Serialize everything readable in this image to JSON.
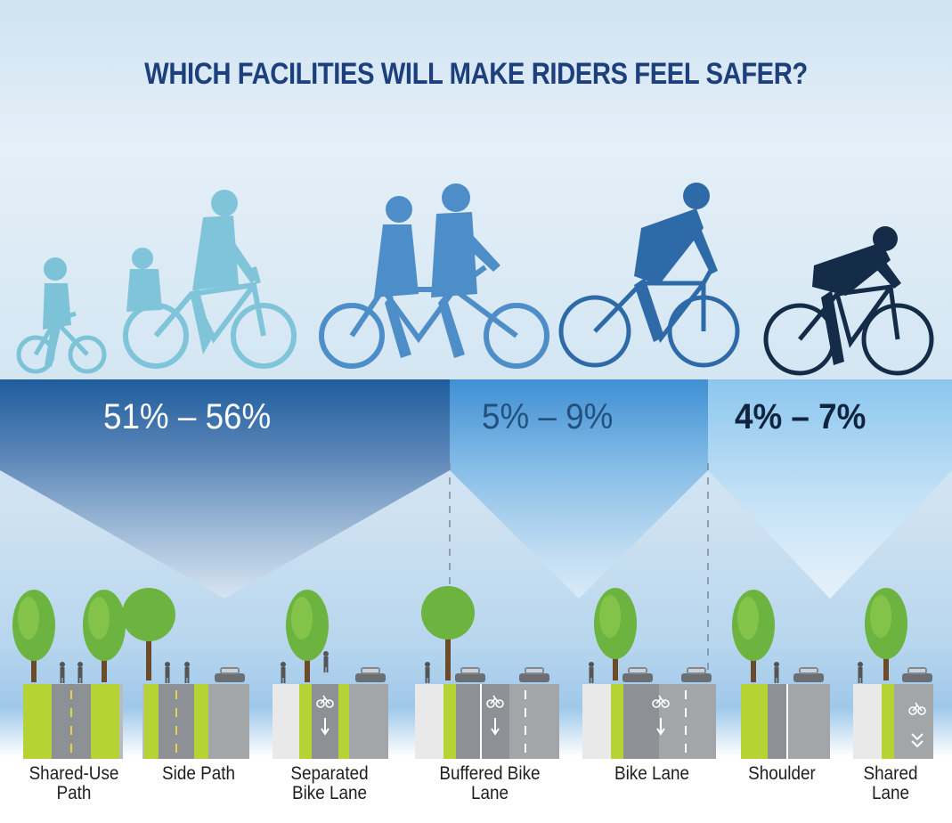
{
  "title": "WHICH FACILITIES WILL MAKE RIDERS FEEL SAFER?",
  "groups": [
    {
      "range": "51% – 56%",
      "color": "#ffffff"
    },
    {
      "range": "5% – 9%",
      "color": "#24507e"
    },
    {
      "range": "4% – 7%",
      "color": "#10243e"
    }
  ],
  "facilities": [
    {
      "line1": "Shared-Use",
      "line2": "Path"
    },
    {
      "line1": "Side Path",
      "line2": ""
    },
    {
      "line1": "Separated",
      "line2": "Bike Lane"
    },
    {
      "line1": "Buffered Bike",
      "line2": "Lane"
    },
    {
      "line1": "Bike Lane",
      "line2": ""
    },
    {
      "line1": "Shoulder",
      "line2": ""
    },
    {
      "line1": "Shared",
      "line2": "Lane"
    }
  ],
  "riders": [
    {
      "icon": "child-cyclist-icon",
      "color": "#7cc3d8"
    },
    {
      "icon": "parent-with-child-seat-cyclist-icon",
      "color": "#80c4d9"
    },
    {
      "icon": "tandem-bicycle-icon",
      "color": "#4e8ec8"
    },
    {
      "icon": "commuter-cyclist-icon",
      "color": "#2e6aa8"
    },
    {
      "icon": "road-racer-cyclist-icon",
      "color": "#142c48"
    }
  ]
}
